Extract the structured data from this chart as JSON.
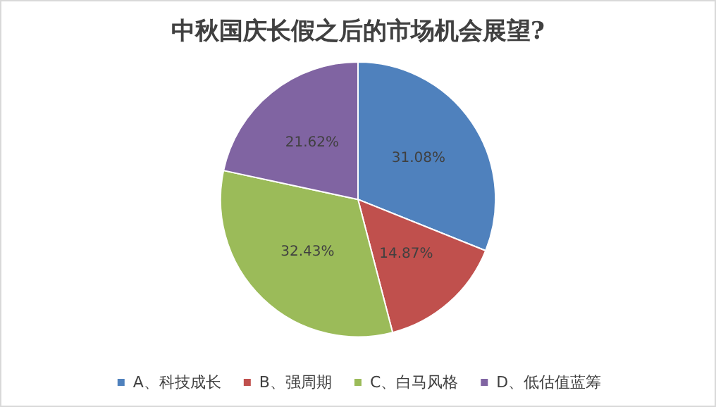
{
  "chart_data": {
    "type": "pie",
    "title": "中秋国庆长假之后的市场机会展望?",
    "categories": [
      "A、科技成长",
      "B、强周期",
      "C、白马风格",
      "D、低估值蓝筹"
    ],
    "values": [
      31.08,
      14.87,
      32.43,
      21.62
    ],
    "value_labels": [
      "31.08%",
      "14.87%",
      "32.43%",
      "21.62%"
    ],
    "colors": [
      "#4f81bd",
      "#c0504d",
      "#9bbb59",
      "#8064a2"
    ],
    "legend": "bottom"
  }
}
